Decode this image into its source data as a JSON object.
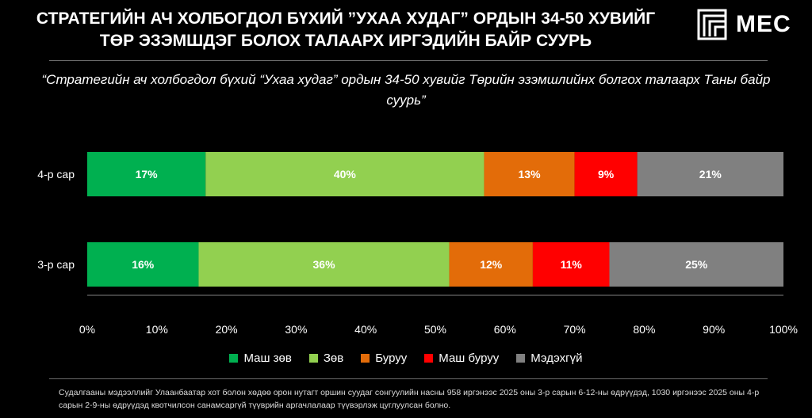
{
  "header": {
    "title": "СТРАТЕГИЙН АЧ ХОЛБОГДОЛ БҮХИЙ ”УХАА ХУДАГ” ОРДЫН 34-50 ХУВИЙГ ТӨР ЭЗЭМШДЭГ БОЛОХ ТАЛААРХ ИРГЭДИЙН БАЙР СУУРЬ",
    "logo_text": "MEC"
  },
  "subtitle": "“Стратегийн ач холбогдол бүхий  “Ухаа худаг” ордын 34-50 хувийг Төрийн эзэмшлийнх болгох талаарх Таны байр суурь”",
  "colors": {
    "very_good": "#00B050",
    "good": "#92D050",
    "wrong": "#E36C09",
    "very_wrong": "#FF0000",
    "unknown": "#808080"
  },
  "chart_data": {
    "type": "bar",
    "orientation": "horizontal",
    "stacked": true,
    "percent": true,
    "categories": [
      "4-р сар",
      "3-р сар"
    ],
    "series": [
      {
        "name": "Маш зөв",
        "values": [
          17,
          16
        ],
        "labels": [
          "17%",
          "16%"
        ]
      },
      {
        "name": "Зөв",
        "values": [
          40,
          36
        ],
        "labels": [
          "40%",
          "36%"
        ]
      },
      {
        "name": "Буруу",
        "values": [
          13,
          12
        ],
        "labels": [
          "13%",
          "12%"
        ]
      },
      {
        "name": "Маш буруу",
        "values": [
          9,
          11
        ],
        "labels": [
          "9%",
          "11%"
        ]
      },
      {
        "name": "Мэдэхгүй",
        "values": [
          21,
          25
        ],
        "labels": [
          "21%",
          "25%"
        ]
      }
    ],
    "xlim": [
      0,
      100
    ],
    "xticks": [
      "0%",
      "10%",
      "20%",
      "30%",
      "40%",
      "50%",
      "60%",
      "70%",
      "80%",
      "90%",
      "100%"
    ],
    "legend_position": "bottom",
    "grid": false
  },
  "footnote": "Судалгааны мэдээллийг Улаанбаатар хот болон хөдөө орон нутагт оршин суудаг сонгуулийн насны 958 иргэнээс 2025 оны 3-р сарын 6-12-ны өдрүүдэд, 1030 иргэнээс 2025 оны 4-р сарын 2-9-ны өдрүүдэд квотчилсон санамсаргүй түүврийн аргачлалаар түүвэрлэж цуглуулсан болно."
}
